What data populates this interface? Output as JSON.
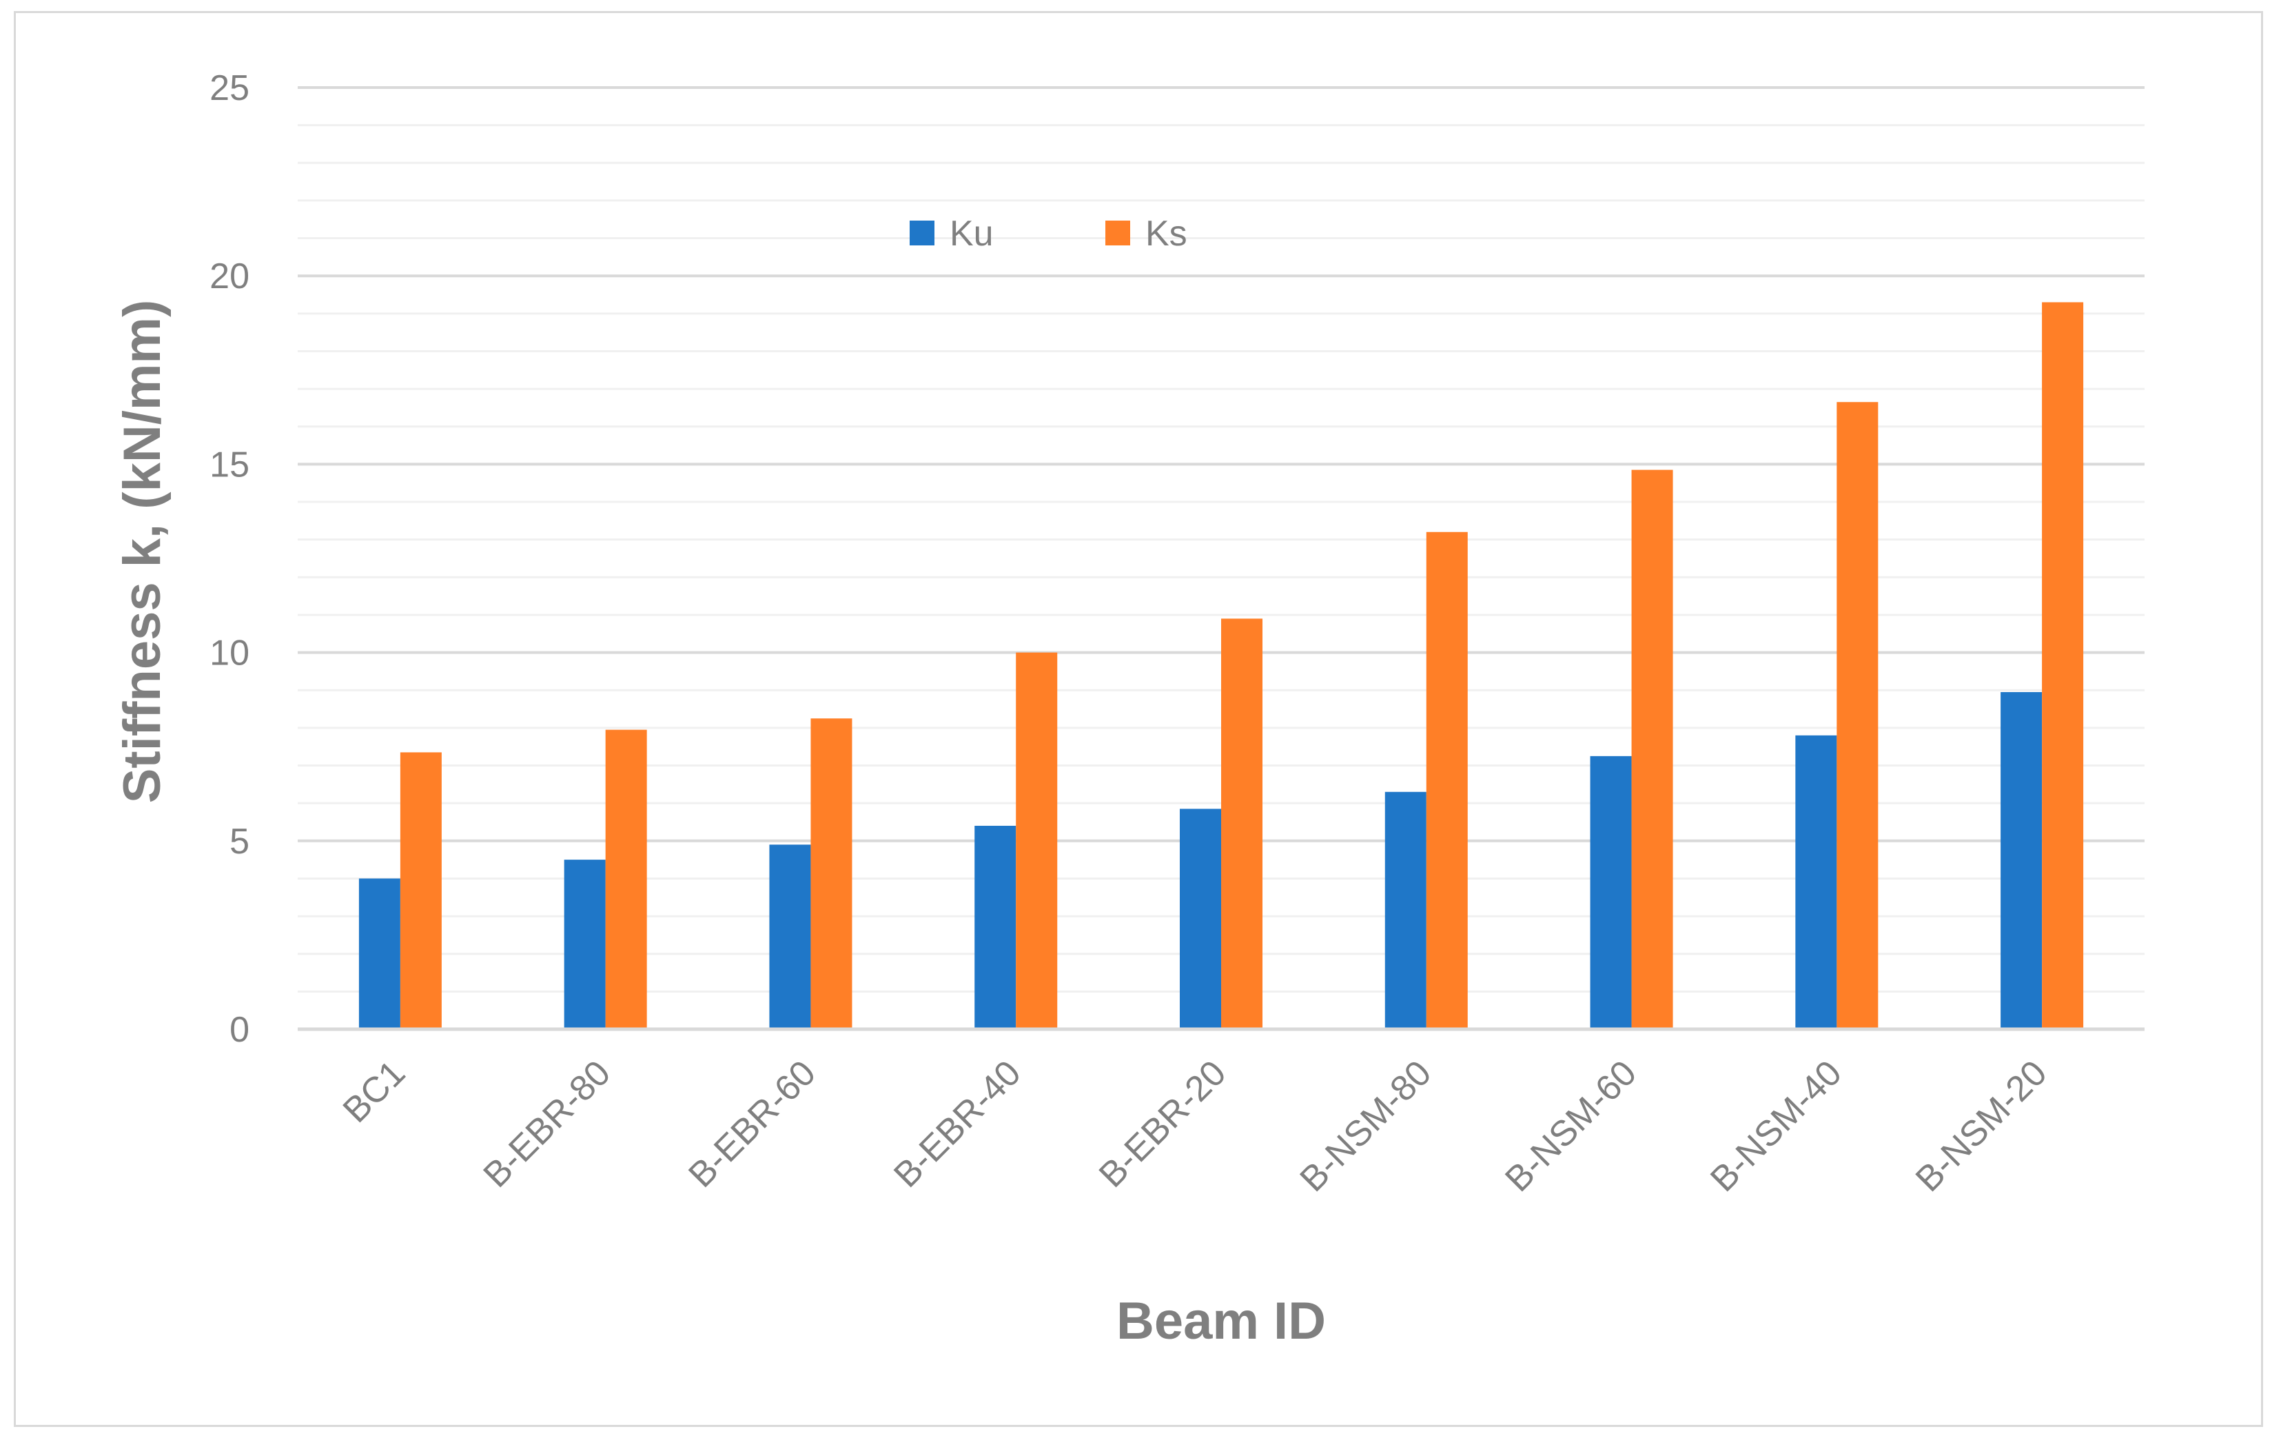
{
  "chart_data": {
    "type": "bar",
    "categories": [
      "BC1",
      "B-EBR-80",
      "B-EBR-60",
      "B-EBR-40",
      "B-EBR-20",
      "B-NSM-80",
      "B-NSM-60",
      "B-NSM-40",
      "B-NSM-20"
    ],
    "series": [
      {
        "name": "Ku",
        "color": "#1f77c8",
        "values": [
          4.0,
          4.5,
          4.9,
          5.4,
          5.85,
          6.3,
          7.25,
          7.8,
          8.95
        ]
      },
      {
        "name": "Ks",
        "color": "#ff7f27",
        "values": [
          7.35,
          7.95,
          8.25,
          10.0,
          10.9,
          13.2,
          14.85,
          16.65,
          19.3
        ]
      }
    ],
    "xlabel": "Beam ID",
    "ylabel": "Stiffness k, (kN/mm)",
    "ylim": [
      0,
      25
    ],
    "yticks": [
      "0",
      "5",
      "10",
      "15",
      "20",
      "25"
    ],
    "major_grid_step": 5,
    "minor_grid_step": 1,
    "grid": true,
    "legend_position": "top-center"
  }
}
